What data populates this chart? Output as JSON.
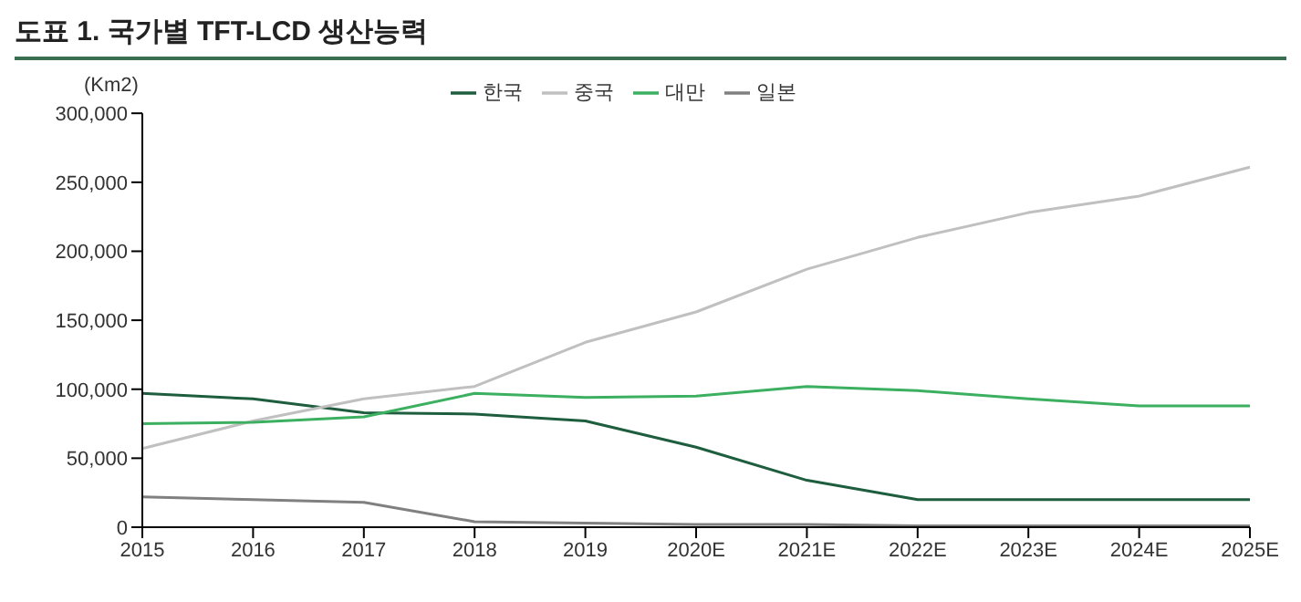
{
  "chart_data": {
    "type": "line",
    "title": "도표 1. 국가별 TFT-LCD 생산능력",
    "ylabel": "(Km2)",
    "categories": [
      "2015",
      "2016",
      "2017",
      "2018",
      "2019",
      "2020E",
      "2021E",
      "2022E",
      "2023E",
      "2024E",
      "2025E"
    ],
    "series": [
      {
        "name": "한국",
        "color": "#1e5e3e",
        "values": [
          97000,
          93000,
          83000,
          82000,
          77000,
          58000,
          34000,
          20000,
          20000,
          20000,
          20000
        ]
      },
      {
        "name": "중국",
        "color": "#c0c0c0",
        "values": [
          57000,
          77000,
          93000,
          102000,
          134000,
          156000,
          187000,
          210000,
          228000,
          240000,
          261000
        ]
      },
      {
        "name": "대만",
        "color": "#3cb060",
        "values": [
          75000,
          76000,
          80000,
          97000,
          94000,
          95000,
          102000,
          99000,
          93000,
          88000,
          88000
        ]
      },
      {
        "name": "일본",
        "color": "#808080",
        "values": [
          22000,
          20000,
          18000,
          4000,
          3000,
          2000,
          2000,
          1000,
          1000,
          1000,
          1000
        ]
      }
    ],
    "ylim": [
      0,
      300000
    ],
    "yticks": [
      0,
      {
        "value": 50000,
        "label": "50,000"
      },
      {
        "value": 100000,
        "label": "100,000"
      },
      {
        "value": 150000,
        "label": "150,000"
      },
      {
        "value": 200000,
        "label": "200,000"
      },
      {
        "value": 250000,
        "label": "250,000"
      },
      {
        "value": 300000,
        "label": "300,000"
      }
    ],
    "legend": "top",
    "marker": "none",
    "line_style": "solid"
  }
}
